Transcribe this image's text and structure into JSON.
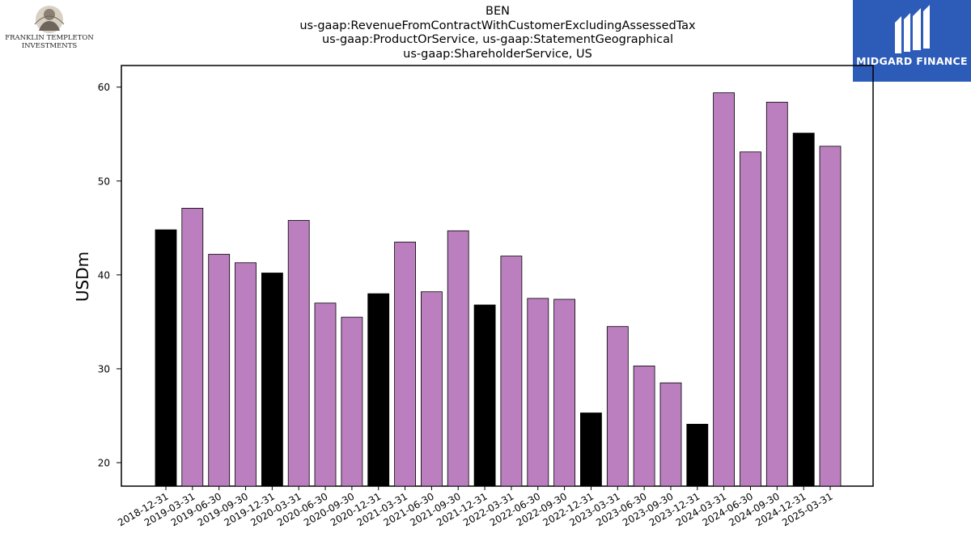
{
  "title_lines": [
    "BEN",
    "us-gaap:RevenueFromContractWithCustomerExcludingAssessedTax",
    "us-gaap:ProductOrService, us-gaap:StatementGeographical",
    "us-gaap:ShareholderService, US"
  ],
  "logos": {
    "left": {
      "line1": "FRANKLIN TEMPLETON",
      "line2": "INVESTMENTS"
    },
    "right": {
      "text": "MIDGARD FINANCE",
      "background": "#2d5cb8"
    }
  },
  "chart_data": {
    "type": "bar",
    "title": "BEN us-gaap:RevenueFromContractWithCustomerExcludingAssessedTax us-gaap:ProductOrService, us-gaap:StatementGeographical us-gaap:ShareholderService, US",
    "xlabel": "",
    "ylabel": "USDm",
    "ylim": [
      17.5,
      62.3
    ],
    "yticks": [
      20,
      30,
      40,
      50,
      60
    ],
    "grid": false,
    "categories": [
      "2018-12-31",
      "2019-03-31",
      "2019-06-30",
      "2019-09-30",
      "2019-12-31",
      "2020-03-31",
      "2020-06-30",
      "2020-09-30",
      "2020-12-31",
      "2021-03-31",
      "2021-06-30",
      "2021-09-30",
      "2021-12-31",
      "2022-03-31",
      "2022-06-30",
      "2022-09-30",
      "2022-12-31",
      "2023-03-31",
      "2023-06-30",
      "2023-09-30",
      "2023-12-31",
      "2024-03-31",
      "2024-06-30",
      "2024-09-30",
      "2024-12-31",
      "2025-03-31"
    ],
    "values": [
      44.8,
      47.1,
      42.2,
      41.3,
      40.2,
      45.8,
      37.0,
      35.5,
      38.0,
      43.5,
      38.2,
      44.7,
      36.8,
      42.0,
      37.5,
      37.4,
      25.3,
      34.5,
      30.3,
      28.5,
      24.1,
      59.4,
      53.1,
      58.4,
      55.1,
      53.7
    ],
    "colors": {
      "year_end": "#000000",
      "quarter": "#bb7fbf",
      "edge": "#000000"
    }
  }
}
